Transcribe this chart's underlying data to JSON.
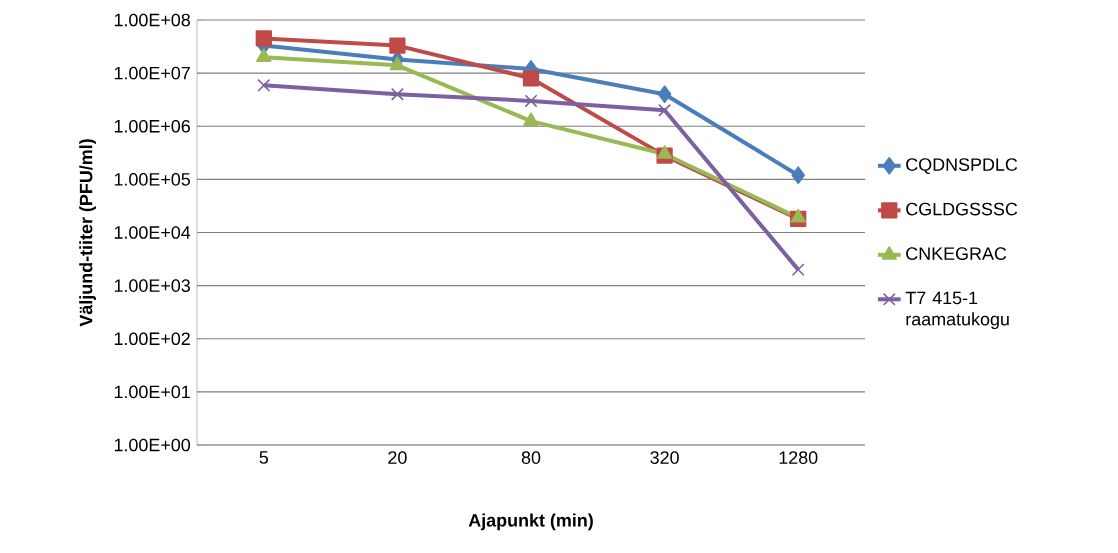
{
  "chart_data": {
    "type": "line",
    "xlabel": "Ajapunkt (min)",
    "ylabel": "Väljund-tiiter (PFU/ml)",
    "categories": [
      "5",
      "20",
      "80",
      "320",
      "1280"
    ],
    "series": [
      {
        "name": "CQDNSPDLC",
        "color": "#4a7ebb",
        "marker": "diamond",
        "values": [
          33000000,
          18000000,
          12000000,
          4000000,
          120000
        ]
      },
      {
        "name": "CGLDGSSSC",
        "color": "#be4b48",
        "marker": "square",
        "values": [
          45000000,
          33000000,
          8000000,
          280000,
          18000
        ]
      },
      {
        "name": "CNKEGRAC",
        "color": "#98b954",
        "marker": "triangle",
        "values": [
          20000000,
          14000000,
          1250000,
          300000,
          19000
        ]
      },
      {
        "name": "T7 415-1 raamatukogu",
        "color": "#7d60a0",
        "marker": "cross",
        "values": [
          5900000,
          4000000,
          3000000,
          2000000,
          2000
        ]
      }
    ],
    "log": "y",
    "ylim": [
      1,
      100000000
    ],
    "yticks": [
      {
        "value": 1,
        "label": "1.00E+00"
      },
      {
        "value": 10,
        "label": "1.00E+01"
      },
      {
        "value": 100,
        "label": "1.00E+02"
      },
      {
        "value": 1000,
        "label": "1.00E+03"
      },
      {
        "value": 10000,
        "label": "1.00E+04"
      },
      {
        "value": 100000,
        "label": "1.00E+05"
      },
      {
        "value": 1000000,
        "label": "1.00E+06"
      },
      {
        "value": 10000000,
        "label": "1.00E+07"
      },
      {
        "value": 100000000,
        "label": "1.00E+08"
      }
    ],
    "grid": "y",
    "legend": "right",
    "line_style": "solid"
  }
}
